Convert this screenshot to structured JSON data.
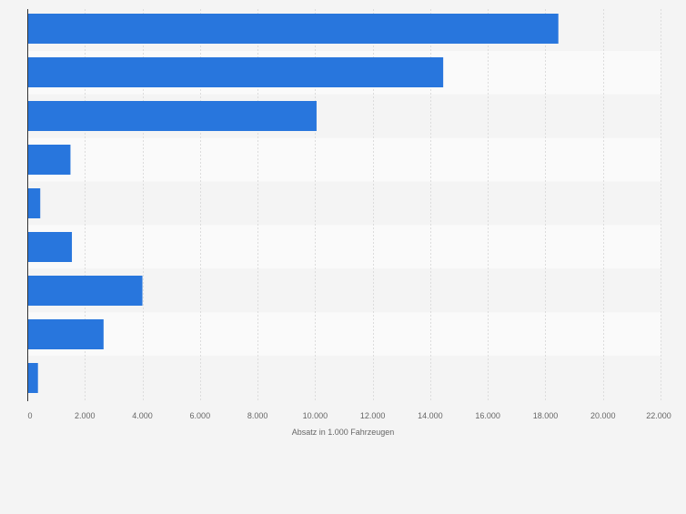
{
  "chart_data": {
    "type": "bar",
    "orientation": "horizontal",
    "title": "",
    "xlabel": "Absatz in 1.000 Fahrzeugen",
    "ylabel": "",
    "categories": [
      "",
      "",
      "",
      "",
      "",
      "",
      "",
      "",
      ""
    ],
    "values": [
      18450,
      14450,
      10050,
      1500,
      450,
      1550,
      4000,
      2650,
      370
    ],
    "xlim": [
      0,
      22000
    ],
    "ticks": [
      0,
      2000,
      4000,
      6000,
      8000,
      10000,
      12000,
      14000,
      16000,
      18000,
      20000,
      22000
    ],
    "tick_labels": [
      "0",
      "2.000",
      "4.000",
      "6.000",
      "8.000",
      "10.000",
      "12.000",
      "14.000",
      "16.000",
      "18.000",
      "20.000",
      "22.000"
    ],
    "grid": true,
    "legend": "none"
  },
  "colors": {
    "bar": "#2876dd",
    "background": "#f4f4f4",
    "band_light": "#fafafa",
    "band_dark": "#f4f4f4",
    "grid": "#dcdcdc",
    "axis": "#333333",
    "tick_text": "#666666"
  }
}
